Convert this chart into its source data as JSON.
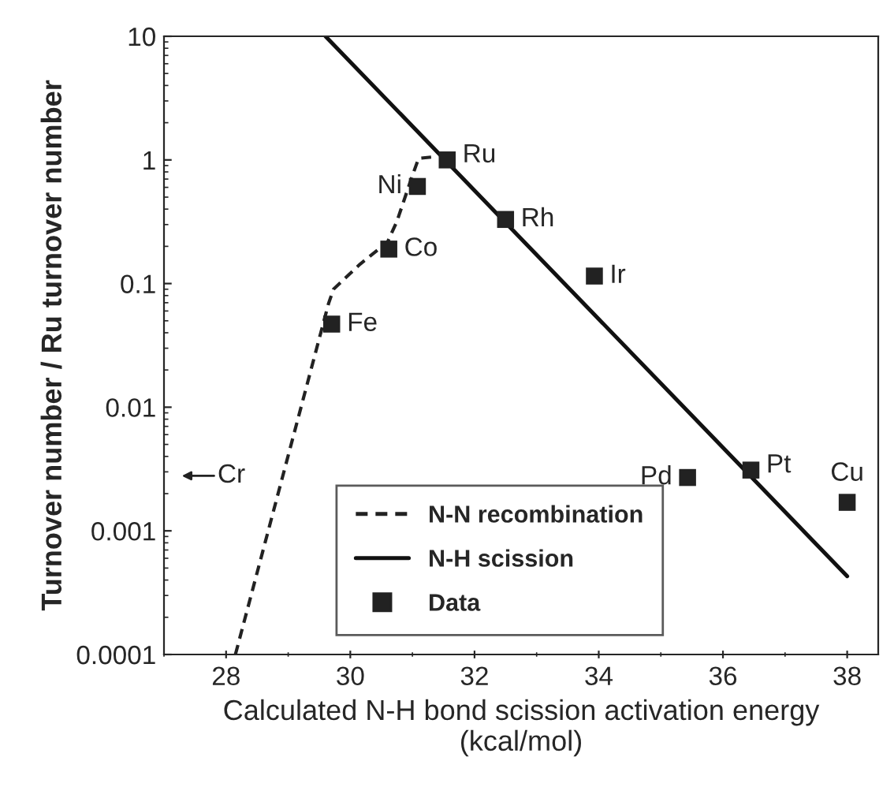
{
  "chart_data": {
    "type": "scatter",
    "xlabel": "Calculated N-H bond scission activation energy\n(kcal/mol)",
    "ylabel": "Turnover number / Ru turnover number",
    "log": "y",
    "grid": false,
    "legend": "bottom",
    "xlim": [
      27,
      38.5
    ],
    "xticks": [
      28,
      30,
      32,
      34,
      36,
      38
    ],
    "ylim": [
      0.0001,
      10
    ],
    "yticks": [
      {
        "value": 0.0001,
        "label": "0.0001"
      },
      {
        "value": 0.001,
        "label": "0.001"
      },
      {
        "value": 0.01,
        "label": "0.01"
      },
      {
        "value": 0.1,
        "label": "0.1"
      },
      {
        "value": 1,
        "label": "1"
      },
      {
        "value": 10,
        "label": "10"
      }
    ],
    "series": [
      {
        "name": "N-N recombination",
        "type": "line",
        "line_style": "dashed",
        "marker": "none",
        "color": "#222222",
        "x": [
          28.15,
          29.65,
          29.73,
          30.16,
          30.6,
          30.75,
          30.98,
          31.1,
          31.36
        ],
        "values": [
          0.0001,
          0.069,
          0.09,
          0.144,
          0.217,
          0.318,
          0.7,
          1.03,
          1.06
        ]
      },
      {
        "name": "N-H scission",
        "type": "line",
        "line_style": "solid",
        "marker": "none",
        "color": "#111111",
        "x": [
          29.6,
          38.0
        ],
        "values": [
          10,
          0.00043
        ]
      },
      {
        "name": "Data",
        "type": "scatter",
        "marker": "square",
        "color": "#222222",
        "x": [
          29.7,
          30.62,
          31.08,
          31.56,
          32.5,
          33.93,
          35.43,
          36.45,
          38.0
        ],
        "values": [
          0.047,
          0.19,
          0.61,
          1.0,
          0.33,
          0.115,
          0.0027,
          0.0031,
          0.0017
        ]
      }
    ],
    "annotations": [
      {
        "text": "Fe",
        "x": 29.7,
        "y": 0.047
      },
      {
        "text": "Co",
        "x": 30.62,
        "y": 0.19
      },
      {
        "text": "Ni",
        "x": 31.08,
        "y": 0.61
      },
      {
        "text": "Ru",
        "x": 31.56,
        "y": 1.0
      },
      {
        "text": "Rh",
        "x": 32.5,
        "y": 0.33
      },
      {
        "text": "Ir",
        "x": 33.93,
        "y": 0.115
      },
      {
        "text": "Pd",
        "x": 35.43,
        "y": 0.0027
      },
      {
        "text": "Pt",
        "x": 36.45,
        "y": 0.0031
      },
      {
        "text": "Cu",
        "x": 38.0,
        "y": 0.0017
      },
      "Cr"
    ]
  }
}
